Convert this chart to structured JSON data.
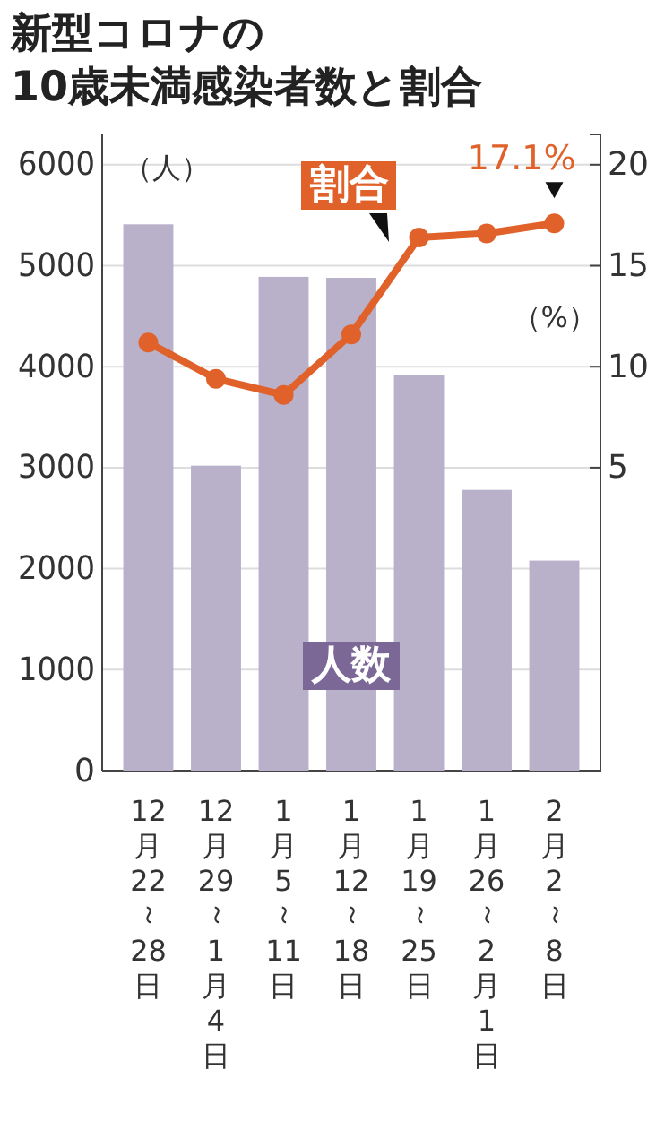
{
  "chart_data": {
    "type": "bar",
    "title": "新型コロナの\n10歳未満感染者数と割合",
    "ylabel": "（人）",
    "y2label": "（%）",
    "categories": [
      "12月22～28日",
      "12月29～1月4日",
      "1月5～11日",
      "1月12～18日",
      "1月19～25日",
      "1月26～2月1日",
      "2月2～8日"
    ],
    "series": [
      {
        "name": "人数",
        "color": "#b9b0c9",
        "values": [
          5410,
          3020,
          4890,
          4880,
          3920,
          2780,
          2080
        ]
      },
      {
        "name": "割合",
        "type": "line",
        "axis": "y2",
        "color": "#e0622a",
        "marker": "circle",
        "values": [
          11.2,
          9.4,
          8.6,
          11.6,
          16.4,
          16.6,
          17.1
        ],
        "value_labels": [
          null,
          null,
          null,
          null,
          null,
          null,
          "17.1%"
        ]
      }
    ],
    "ylim": [
      0,
      6300
    ],
    "yticks": [
      0,
      1000,
      2000,
      3000,
      4000,
      5000,
      6000
    ],
    "y2lim": [
      -10,
      21.5
    ],
    "y2ticks": [
      5,
      10,
      15,
      20
    ],
    "grid": "y",
    "legend": false
  }
}
